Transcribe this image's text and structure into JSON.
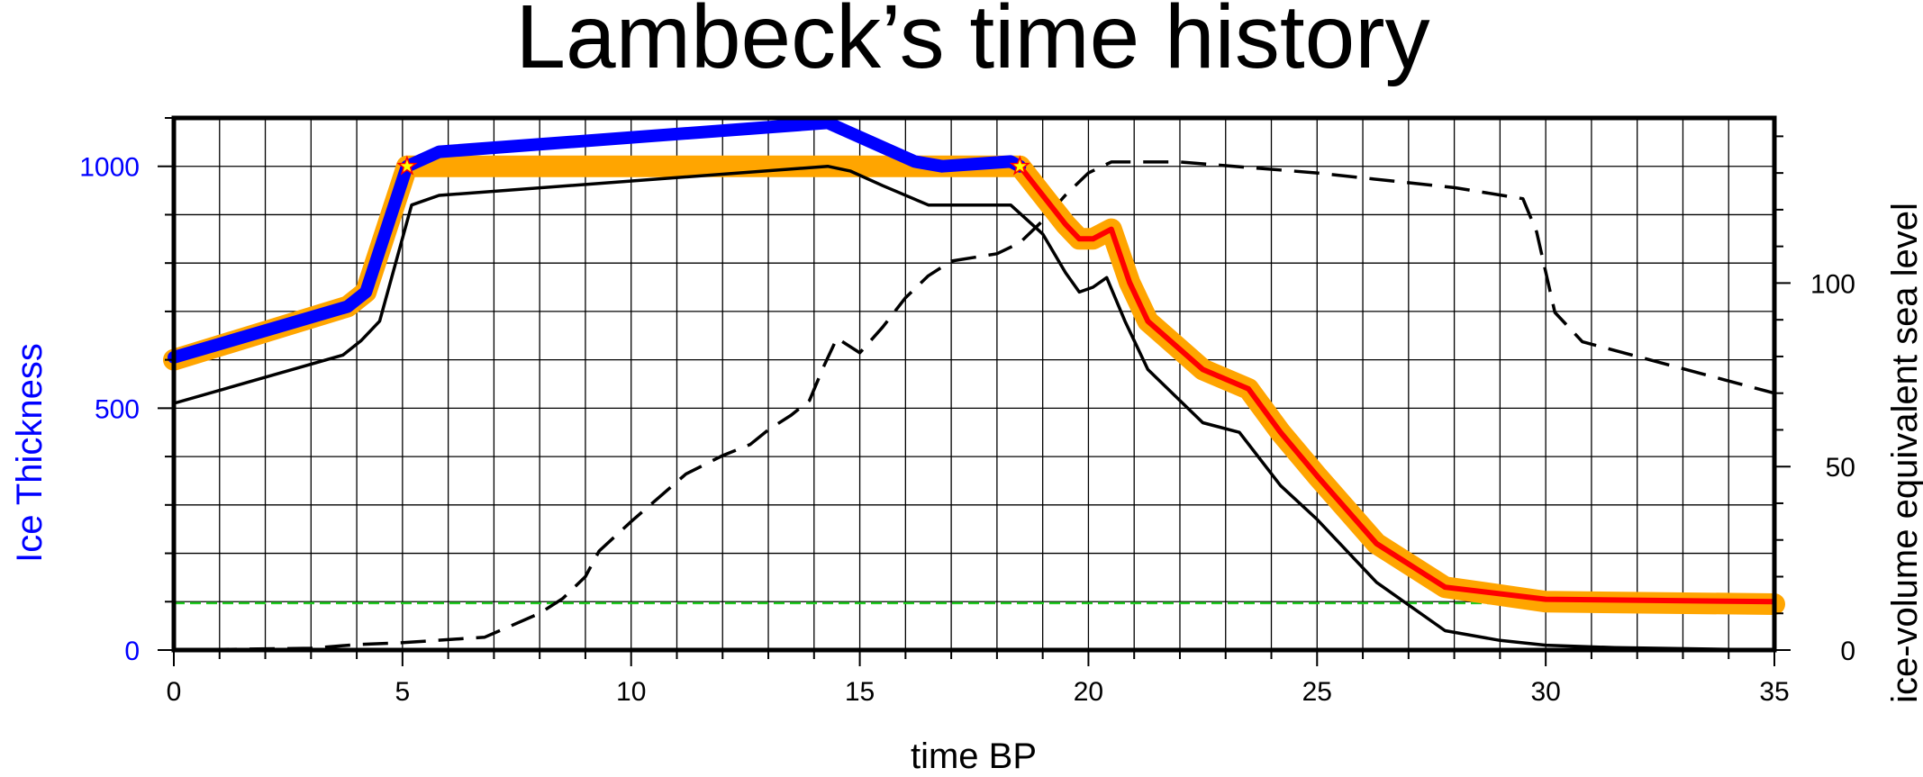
{
  "chart_data": {
    "type": "line",
    "title": "Lambeck’s time history",
    "xlabel": "time BP",
    "ylabel_left": "Ice Thickness",
    "ylabel_right": "ice-volume equivalent sea level",
    "xlim": [
      0,
      35
    ],
    "ylim_left": [
      0,
      1100
    ],
    "ylim_right": [
      0,
      145
    ],
    "x_ticks": [
      0,
      5,
      10,
      15,
      20,
      25,
      30,
      35
    ],
    "y_left_ticks": [
      0,
      500,
      1000
    ],
    "y_right_ticks": [
      0,
      50,
      100
    ],
    "grid": true,
    "colors": {
      "left_axis": "#0000ff",
      "blue_line": "#0000ff",
      "orange_band": "#ffa500",
      "red_line": "#ff0000",
      "reference": "#22cc22",
      "black": "#000000",
      "marker": "#ffff00"
    },
    "series": [
      {
        "axis": "left",
        "style": "orange-band",
        "x": [
          0,
          3.8,
          4.2,
          5.1,
          5.5,
          14,
          18.5,
          19,
          19.5,
          19.8,
          20.1,
          20.5,
          20.9,
          21.3,
          22.5,
          23.5,
          24.2,
          25,
          26.3,
          27.8,
          30,
          35
        ],
        "y": [
          600,
          710,
          740,
          1000,
          1000,
          1000,
          1000,
          940,
          880,
          850,
          850,
          870,
          760,
          680,
          580,
          540,
          450,
          360,
          220,
          130,
          100,
          95
        ]
      },
      {
        "axis": "left",
        "style": "blue",
        "x": [
          0,
          3.8,
          4.2,
          5.1,
          5.8,
          14.3,
          16.2,
          16.8,
          18.3,
          18.5
        ],
        "y": [
          605,
          710,
          740,
          1000,
          1030,
          1090,
          1010,
          1000,
          1010,
          1000
        ]
      },
      {
        "axis": "left",
        "style": "red",
        "x": [
          18.5,
          19,
          19.5,
          19.8,
          20.1,
          20.5,
          20.9,
          21.3,
          22.5,
          23.5,
          24.2,
          25,
          26.3,
          27.8,
          30,
          35
        ],
        "y": [
          1000,
          940,
          880,
          850,
          850,
          870,
          760,
          680,
          580,
          540,
          450,
          360,
          220,
          130,
          105,
          100
        ]
      },
      {
        "axis": "left",
        "style": "black-solid",
        "x": [
          0,
          3.7,
          4.1,
          4.5,
          5.2,
          5.8,
          14.3,
          14.8,
          15.5,
          16.5,
          17.5,
          18.3,
          19,
          19.5,
          19.8,
          20.1,
          20.4,
          20.8,
          21.3,
          22.5,
          23.3,
          24.2,
          25,
          26.3,
          27.8,
          29,
          30,
          31.5,
          35
        ],
        "y": [
          510,
          610,
          640,
          680,
          920,
          940,
          1000,
          990,
          960,
          920,
          920,
          920,
          860,
          780,
          740,
          750,
          770,
          680,
          580,
          470,
          450,
          340,
          270,
          140,
          40,
          20,
          10,
          5,
          0
        ]
      },
      {
        "axis": "right",
        "style": "black-dashed",
        "x": [
          0,
          3,
          4,
          5,
          6.8,
          8,
          8.5,
          9,
          9.3,
          10,
          11.2,
          12,
          12.6,
          13,
          13.5,
          13.9,
          14.2,
          14.5,
          15,
          15.5,
          16,
          16.5,
          17,
          18,
          18.5,
          19,
          19.5,
          20,
          20.5,
          22,
          25,
          28,
          29.5,
          29.8,
          30.2,
          30.8,
          35
        ],
        "y": [
          0,
          0.5,
          1.5,
          2,
          3.5,
          10,
          14,
          20,
          27,
          35,
          48,
          53,
          56,
          60,
          64,
          68,
          77,
          85,
          81,
          88,
          96,
          102,
          106,
          108,
          111,
          117,
          124,
          130,
          133,
          133,
          130,
          126,
          123,
          114,
          92,
          84,
          70
        ]
      },
      {
        "axis": "left",
        "style": "green-dashed",
        "x": [
          0,
          35
        ],
        "y": [
          97,
          97
        ]
      }
    ],
    "markers": [
      {
        "x": 5.1,
        "y": 1000,
        "shape": "star"
      },
      {
        "x": 18.5,
        "y": 1000,
        "shape": "star"
      }
    ]
  }
}
